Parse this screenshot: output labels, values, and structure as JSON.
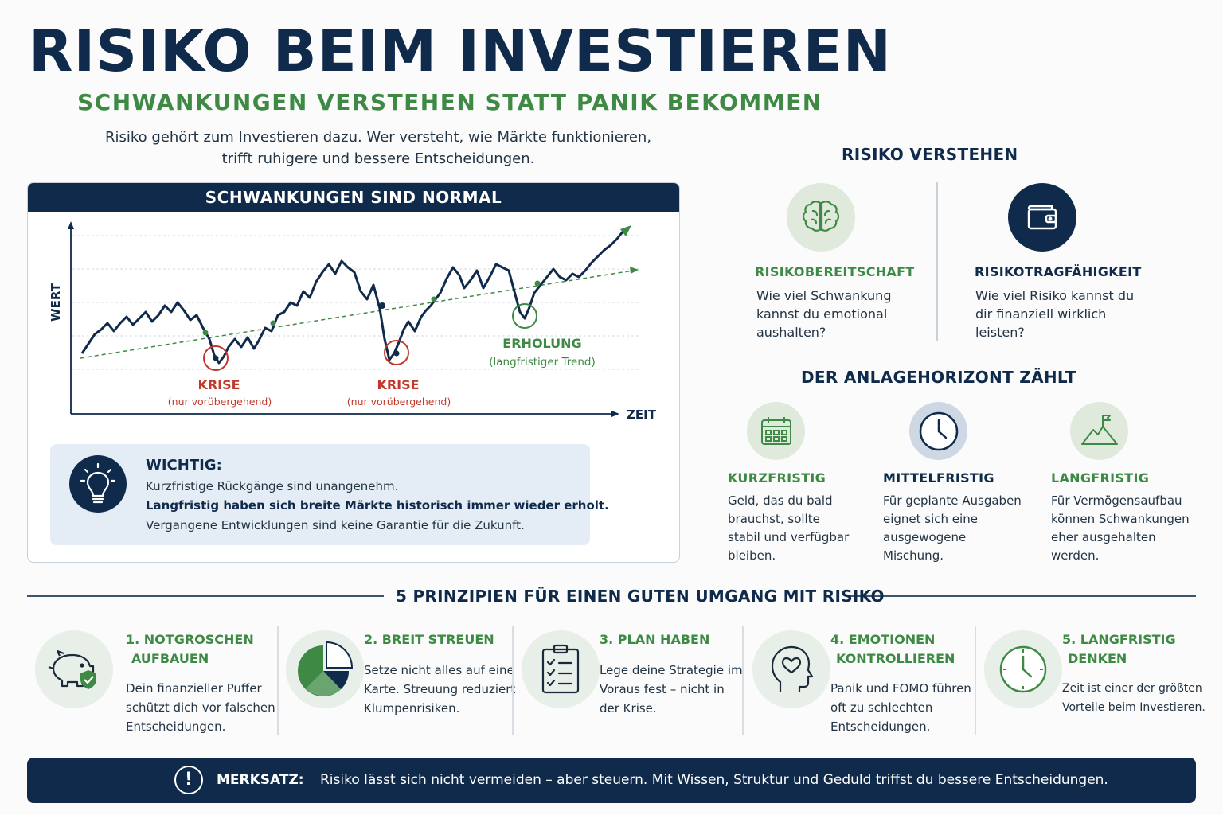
{
  "title": "RISIKO BEIM INVESTIEREN",
  "subtitle": "SCHWANKUNGEN VERSTEHEN STATT PANIK BEKOMMEN",
  "intro": [
    "Risiko gehört zum Investieren dazu. Wer versteht, wie Märkte funktionieren,",
    "trifft ruhigere und bessere Entscheidungen."
  ],
  "chart": {
    "header": "SCHWANKUNGEN SIND NORMAL",
    "ylabel": "WERT",
    "xlabel": "ZEIT",
    "annotations": [
      {
        "label": "KRISE",
        "sub": "(nur vorübergehend)",
        "color": "#c0392b"
      },
      {
        "label": "KRISE",
        "sub": "(nur vorübergehend)",
        "color": "#c0392b"
      },
      {
        "label": "ERHOLUNG",
        "sub": "(langfristiger Trend)",
        "color": "#3e8a45"
      }
    ]
  },
  "note": {
    "title": "WICHTIG:",
    "line1": "Kurzfristige Rückgänge sind unangenehm.",
    "line2": "Langfristig haben sich breite Märkte historisch immer wieder erholt.",
    "line3": "Vergangene Entwicklungen sind keine Garantie für die Zukunft."
  },
  "risk": {
    "heading": "RISIKO VERSTEHEN",
    "items": [
      {
        "title": "RISIKOBEREITSCHAFT",
        "text": [
          "Wie viel Schwankung",
          "kannst du emotional",
          "aushalten?"
        ],
        "icon": "brain-icon"
      },
      {
        "title": "RISIKOTRAGFÄHIGKEIT",
        "text": [
          "Wie viel Risiko kannst du",
          "dir finanziell wirklich",
          "leisten?"
        ],
        "icon": "wallet-icon"
      }
    ]
  },
  "horizon": {
    "heading": "DER ANLAGEHORIZONT ZÄHLT",
    "items": [
      {
        "title": "KURZFRISTIG",
        "text": [
          "Geld, das du bald",
          "brauchst, sollte",
          "stabil und verfügbar",
          "bleiben."
        ],
        "icon": "calendar-icon"
      },
      {
        "title": "MITTELFRISTIG",
        "text": [
          "Für geplante Ausgaben",
          "eignet sich eine",
          "ausgewogene",
          "Mischung."
        ],
        "icon": "clock-icon"
      },
      {
        "title": "LANGFRISTIG",
        "text": [
          "Für Vermögensaufbau",
          "können Schwankungen",
          "eher ausgehalten",
          "werden."
        ],
        "icon": "mountain-flag-icon"
      }
    ]
  },
  "principles": {
    "heading": "5 PRINZIPIEN FÜR EINEN GUTEN UMGANG MIT RISIKO",
    "items": [
      {
        "title": [
          "1. NOTGROSCHEN",
          " AUFBAUEN"
        ],
        "text": [
          "Dein finanzieller Puffer",
          "schützt dich vor falschen",
          "Entscheidungen."
        ],
        "icon": "piggy-bank-icon"
      },
      {
        "title": [
          "2. BREIT STREUEN"
        ],
        "text": [
          "Setze nicht alles auf eine",
          "Karte. Streuung reduziert",
          "Klumpenrisiken."
        ],
        "icon": "pie-chart-icon"
      },
      {
        "title": [
          "3. PLAN HABEN"
        ],
        "text": [
          "Lege deine Strategie im",
          "Voraus fest – nicht in",
          "der Krise."
        ],
        "icon": "checklist-icon"
      },
      {
        "title": [
          "4. EMOTIONEN",
          " KONTROLLIEREN"
        ],
        "text": [
          "Panik und FOMO führen",
          "oft zu schlechten",
          "Entscheidungen."
        ],
        "icon": "head-heart-icon"
      },
      {
        "title": [
          "5. LANGFRISTIG",
          " DENKEN"
        ],
        "text": [
          "Zeit ist einer der größten",
          "Vorteile beim Investieren."
        ],
        "icon": "clock-icon"
      }
    ]
  },
  "footer": {
    "label": "MERKSATZ:",
    "text": "Risiko lässt sich nicht vermeiden – aber steuern. Mit Wissen, Struktur und Geduld triffst du bessere Entscheidungen."
  },
  "colors": {
    "navy": "#0f2a4a",
    "green": "#3e8a45",
    "red": "#c0392b"
  }
}
